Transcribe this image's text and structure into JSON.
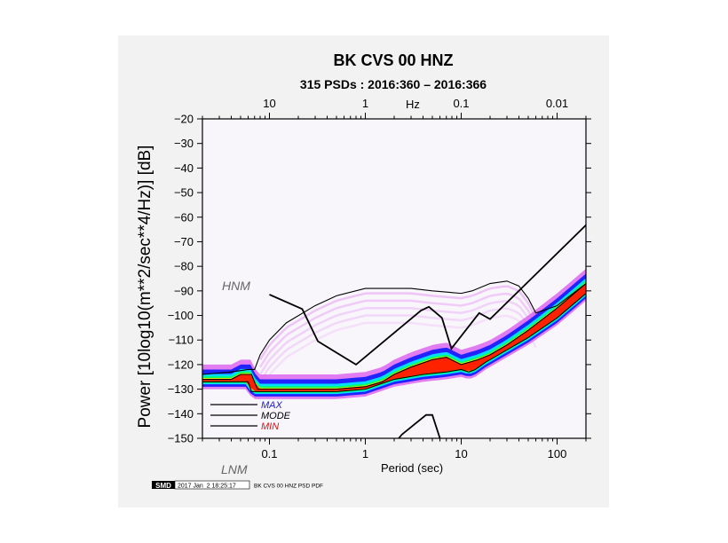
{
  "chart_data": {
    "type": "heatmap",
    "title": "BK CVS 00 HNZ",
    "subtitle": "315 PSDs : 2016:360 – 2016:366",
    "xlabel": "Period (sec)",
    "ylabel": "Power [10log10(m**2/sec**4/Hz)] [dB]",
    "x_scale": "log",
    "xlim": [
      0.02,
      200
    ],
    "ylim": [
      -150,
      -20
    ],
    "x_ticks": [
      0.1,
      1,
      10,
      100
    ],
    "x_tick_labels": [
      "0.1",
      "1",
      "10",
      "100"
    ],
    "top_axis_label": "Hz",
    "top_ticks": [
      0.1,
      1,
      10,
      100
    ],
    "top_tick_labels": [
      "10",
      "1",
      "0.1",
      "0.01"
    ],
    "y_ticks": [
      -20,
      -30,
      -40,
      -50,
      -60,
      -70,
      -80,
      -90,
      -100,
      -110,
      -120,
      -130,
      -140,
      -150
    ],
    "y_tick_labels": [
      "−20",
      "−30",
      "−40",
      "−50",
      "−60",
      "−70",
      "−80",
      "−90",
      "−100",
      "−110",
      "−120",
      "−130",
      "−140",
      "−150"
    ],
    "annotations": {
      "hnm": "HNM",
      "lnm": "LNM"
    },
    "legend": {
      "placement": "bottom-left",
      "entries": [
        {
          "name": "MAX",
          "color": "#1a1acc"
        },
        {
          "name": "MODE",
          "color": "#000000"
        },
        {
          "name": "MIN",
          "color": "#dd1111"
        }
      ]
    },
    "series": [
      {
        "name": "HNM",
        "color": "#000000",
        "x": [
          0.1,
          0.22,
          0.32,
          0.8,
          3.8,
          4.6,
          6.3,
          7.9,
          15.4,
          20,
          354.8
        ],
        "y": [
          -91.5,
          -97.4,
          -110.5,
          -120,
          -98,
          -96.5,
          -101,
          -113.5,
          -99,
          -101.5,
          -53.7
        ]
      },
      {
        "name": "LNM",
        "color": "#000000",
        "x": [
          1.0,
          2.4,
          4.3,
          5.0,
          6.0,
          10.0
        ],
        "y": [
          -166.7,
          -148.5,
          -140.5,
          -140.5,
          -150,
          -160
        ]
      },
      {
        "name": "MAX",
        "color": "#000000",
        "x": [
          0.02,
          0.04,
          0.06,
          0.07,
          0.08,
          0.1,
          0.15,
          0.3,
          0.5,
          1,
          2,
          3,
          5,
          10,
          13,
          20,
          30,
          40,
          50,
          60,
          100,
          200
        ],
        "y": [
          -124,
          -123,
          -122,
          -122,
          -116,
          -110,
          -103,
          -96,
          -92,
          -89,
          -89,
          -89,
          -90,
          -91,
          -90,
          -87,
          -86,
          -88,
          -93,
          -99,
          -96,
          -87
        ]
      },
      {
        "name": "MODE",
        "color": "#000000",
        "x": [
          0.02,
          0.04,
          0.05,
          0.065,
          0.075,
          0.1,
          0.2,
          0.5,
          1,
          1.5,
          2,
          3,
          5,
          7,
          10,
          15,
          20,
          30,
          50,
          100,
          200
        ],
        "y": [
          -126,
          -126,
          -124,
          -124,
          -130,
          -130,
          -130,
          -130,
          -129,
          -127,
          -124,
          -121,
          -118,
          -117,
          -120,
          -118,
          -116,
          -112,
          -106,
          -97,
          -87
        ]
      },
      {
        "name": "MIN",
        "color": "#000000",
        "x": [
          0.02,
          0.04,
          0.06,
          0.065,
          0.1,
          0.2,
          0.5,
          1,
          2,
          4,
          7,
          10,
          12,
          14,
          18,
          30,
          50,
          100,
          200
        ],
        "y": [
          -127,
          -127,
          -127,
          -131,
          -131,
          -131,
          -131,
          -130,
          -126,
          -124,
          -123,
          -122,
          -123,
          -122,
          -119,
          -114,
          -109,
          -101,
          -91
        ]
      }
    ]
  },
  "footer": {
    "logo_text": "SMD",
    "timestamp": "2017 Jan  2 18:25:17",
    "caption": "BK CVS 00 HNZ PSD PDF"
  },
  "colors": {
    "background": "#f2f2f2",
    "plot_background": "#f8f6fb",
    "density_high": "#ff2200",
    "density_mid": "#00ff66",
    "density_low": "#2222ff",
    "density_faint": "#dd66ee",
    "legend_max": "#1a1acc",
    "legend_min": "#dd1111"
  }
}
